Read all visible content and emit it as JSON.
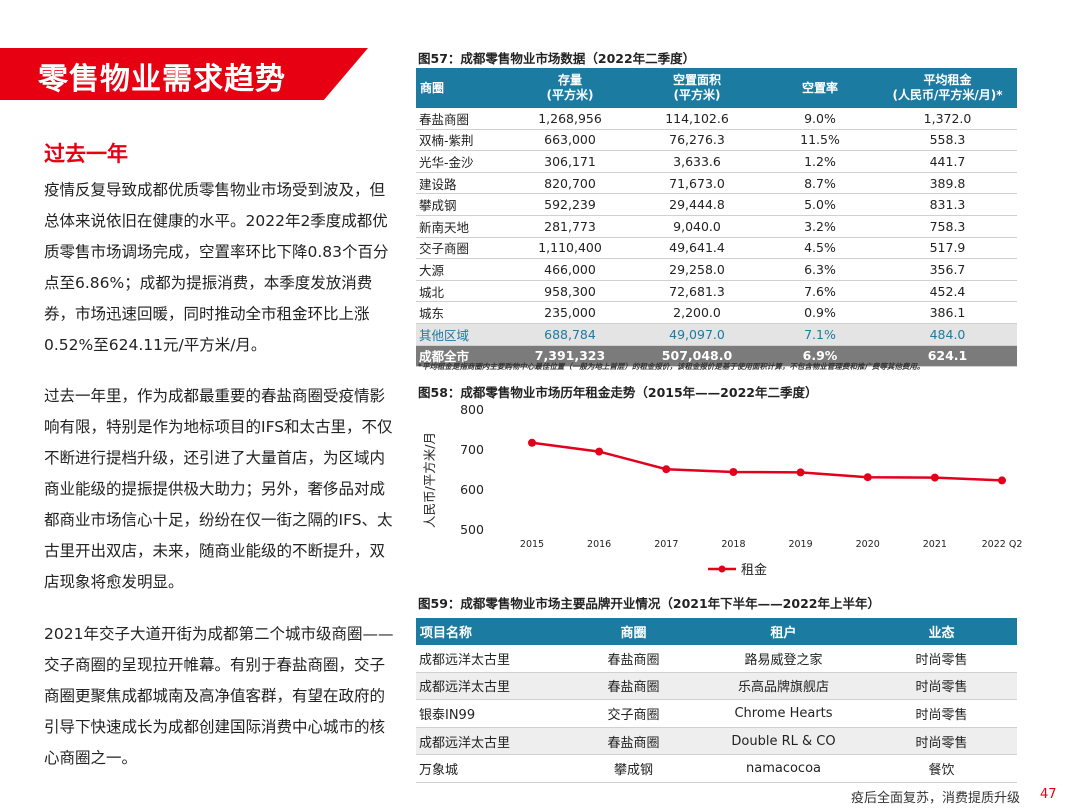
{
  "banner_title": "零售物业需求趋势",
  "section_title": "过去一年",
  "paragraphs": [
    "疫情反复导致成都优质零售物业市场受到波及，但总体来说依旧在健康的水平。2022年2季度成都优质零售市场调场完成，空置率环比下降0.83个百分点至6.86%；成都为提振消费，本季度发放消费券，市场迅速回暖，同时推动全市租金环比上涨0.52%至624.11元/平方米/月。",
    "过去一年里，作为成都最重要的春盐商圈受疫情影响有限，特别是作为地标项目的IFS和太古里，不仅不断进行提档升级，还引进了大量首店，为区域内商业能级的提振提供极大助力；另外，奢侈品对成都商业市场信心十足，纷纷在仅一街之隔的IFS、太古里开出双店，未来，随商业能级的不断提升，双店现象将愈发明显。",
    "2021年交子大道开街为成都第二个城市级商圈——交子商圈的呈现拉开帷幕。有别于春盐商圈，交子商圈更聚焦成都城南及高净值客群，有望在政府的引导下快速成长为成都创建国际消费中心城市的核心商圈之一。"
  ],
  "fig57": {
    "title": "图57：成都零售物业市场数据（2022年二季度）",
    "headers": [
      "商圈",
      "存量\n(平方米)",
      "空置面积\n(平方米)",
      "空置率",
      "平均租金\n(人民币/平方米/月)*"
    ],
    "rows": [
      [
        "春盐商圈",
        "1,268,956",
        "114,102.6",
        "9.0%",
        "1,372.0"
      ],
      [
        "双楠-紫荆",
        "663,000",
        "76,276.3",
        "11.5%",
        "558.3"
      ],
      [
        "光华-金沙",
        "306,171",
        "3,633.6",
        "1.2%",
        "441.7"
      ],
      [
        "建设路",
        "820,700",
        "71,673.0",
        "8.7%",
        "389.8"
      ],
      [
        "攀成钢",
        "592,239",
        "29,444.8",
        "5.0%",
        "831.3"
      ],
      [
        "新南天地",
        "281,773",
        "9,040.0",
        "3.2%",
        "758.3"
      ],
      [
        "交子商圈",
        "1,110,400",
        "49,641.4",
        "4.5%",
        "517.9"
      ],
      [
        "大源",
        "466,000",
        "29,258.0",
        "6.3%",
        "356.7"
      ],
      [
        "城北",
        "958,300",
        "72,681.3",
        "7.6%",
        "452.4"
      ],
      [
        "城东",
        "235,000",
        "2,200.0",
        "0.9%",
        "386.1"
      ]
    ],
    "other_row": [
      "其他区域",
      "688,784",
      "49,097.0",
      "7.1%",
      "484.0"
    ],
    "total_row": [
      "成都全市",
      "7,391,323",
      "507,048.0",
      "6.9%",
      "624.1"
    ],
    "footnote": "*平均租金是指商圈内主要购物中心最佳位置（一般为地上首层）的租金报价，该租金报价是基于使用面积计算，不包含物业管理费和推广费等其他费用。"
  },
  "fig58": {
    "title": "图58：成都零售物业市场历年租金走势（2015年——2022年二季度）"
  },
  "chart_data": {
    "type": "line",
    "categories": [
      "2015",
      "2016",
      "2017",
      "2018",
      "2019",
      "2020",
      "2021",
      "2022 Q2"
    ],
    "series": [
      {
        "name": "租金",
        "values": [
          718,
          696,
          652,
          645,
          644,
          632,
          631,
          624
        ]
      }
    ],
    "ylabel": "人民币/平方米/月",
    "ylim": [
      500,
      800
    ],
    "yticks": [
      500,
      600,
      700,
      800
    ],
    "grid": false,
    "legend": "bottom",
    "color": "#e2001a"
  },
  "fig59": {
    "title": "图59：成都零售物业市场主要品牌开业情况（2021年下半年——2022年上半年）",
    "headers": [
      "项目名称",
      "商圈",
      "租户",
      "业态"
    ],
    "rows": [
      [
        "成都远洋太古里",
        "春盐商圈",
        "路易威登之家",
        "时尚零售"
      ],
      [
        "成都远洋太古里",
        "春盐商圈",
        "乐高品牌旗舰店",
        "时尚零售"
      ],
      [
        "银泰IN99",
        "交子商圈",
        "Chrome Hearts",
        "时尚零售"
      ],
      [
        "成都远洋太古里",
        "春盐商圈",
        "Double RL & CO",
        "时尚零售"
      ],
      [
        "万象城",
        "攀成钢",
        "namacocoa",
        "餐饮"
      ]
    ]
  },
  "footer": {
    "text": "疫后全面复苏，消费提质升级",
    "page": "47"
  },
  "colors": {
    "brand_red": "#e60012",
    "table_header": "#1b7ba0",
    "total_row": "#7b7b7b"
  }
}
